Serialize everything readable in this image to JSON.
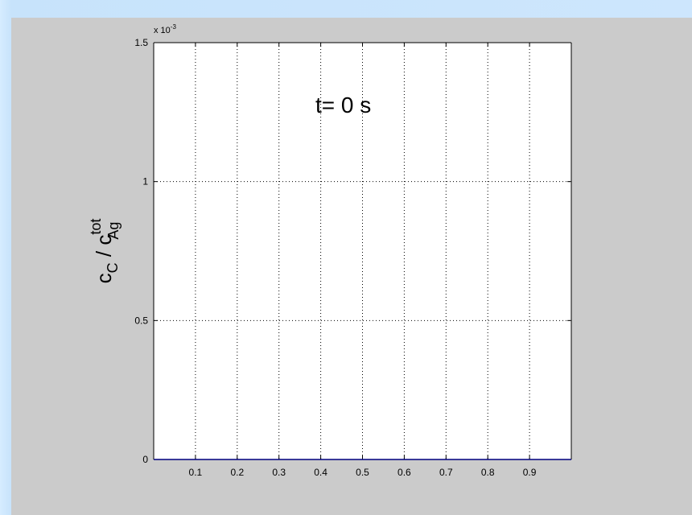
{
  "chart_data": {
    "type": "line",
    "title": "",
    "annotation": "t= 0 s",
    "xlabel": "",
    "ylabel": {
      "base": "c",
      "sub": "C",
      "separator": " / ",
      "base2": "c",
      "sub2": "Ag",
      "sup2": "tot"
    },
    "y_exponent_label": "x 10",
    "y_exponent_power": "-3",
    "xlim": [
      0,
      1
    ],
    "ylim": [
      0,
      1.5
    ],
    "x_ticks": [
      0.1,
      0.2,
      0.3,
      0.4,
      0.5,
      0.6,
      0.7,
      0.8,
      0.9
    ],
    "x_tick_labels": [
      "0.1",
      "0.2",
      "0.3",
      "0.4",
      "0.5",
      "0.6",
      "0.7",
      "0.8",
      "0.9"
    ],
    "y_ticks": [
      0,
      0.5,
      1,
      1.5
    ],
    "y_tick_labels": [
      "0",
      "0.5",
      "1",
      "1.5"
    ],
    "grid": true,
    "series": [
      {
        "color": "#00007f",
        "x": [
          0,
          0.1,
          0.2,
          0.3,
          0.4,
          0.5,
          0.6,
          0.7,
          0.8,
          0.9,
          1
        ],
        "y": [
          0,
          0,
          0,
          0,
          0,
          0,
          0,
          0,
          0,
          0,
          0
        ]
      }
    ]
  },
  "colors": {
    "figure_background": "#cbcbcb",
    "axes_background": "#ffffff",
    "grid": "#000000",
    "line": "#00007f"
  }
}
